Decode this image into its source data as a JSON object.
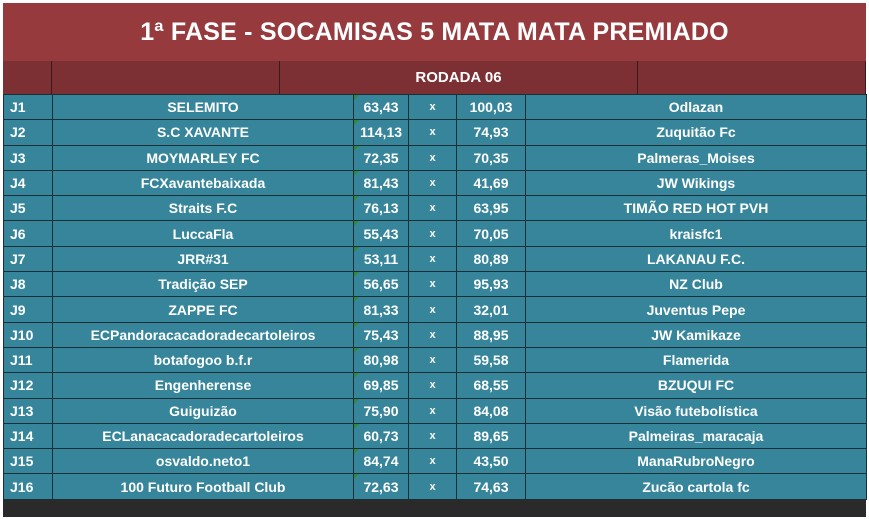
{
  "title": "1ª FASE - SOCAMISAS 5 MATA MATA PREMIADO",
  "round": "RODADA 06",
  "vs_symbol": "x",
  "colors": {
    "title_bg": "#963a3d",
    "round_bg": "#7c3034",
    "row_bg": "#36859b",
    "text": "#ffffff",
    "score_marker": "#2e8b3a"
  },
  "matches": [
    {
      "id": "J1",
      "home": "SELEMITO",
      "home_score": "63,43",
      "away_score": "100,03",
      "away": "Odlazan"
    },
    {
      "id": "J2",
      "home": "S.C XAVANTE",
      "home_score": "114,13",
      "away_score": "74,93",
      "away": "Zuquitão Fc"
    },
    {
      "id": "J3",
      "home": "MOYMARLEY FC",
      "home_score": "72,35",
      "away_score": "70,35",
      "away": "Palmeras_Moises"
    },
    {
      "id": "J4",
      "home": "FCXavantebaixada",
      "home_score": "81,43",
      "away_score": "41,69",
      "away": "JW Wikings"
    },
    {
      "id": "J5",
      "home": "Straits F.C",
      "home_score": "76,13",
      "away_score": "63,95",
      "away": "TIMÃO RED HOT PVH"
    },
    {
      "id": "J6",
      "home": "LuccaFla",
      "home_score": "55,43",
      "away_score": "70,05",
      "away": "kraisfc1"
    },
    {
      "id": "J7",
      "home": "JRR#31",
      "home_score": "53,11",
      "away_score": "80,89",
      "away": "LAKANAU F.C."
    },
    {
      "id": "J8",
      "home": "Tradição SEP",
      "home_score": "56,65",
      "away_score": "95,93",
      "away": "NZ Club"
    },
    {
      "id": "J9",
      "home": "ZAPPE FC",
      "home_score": "81,33",
      "away_score": "32,01",
      "away": "Juventus Pepe"
    },
    {
      "id": "J10",
      "home": "ECPandoracacadoradecartoleiros",
      "home_score": "75,43",
      "away_score": "88,95",
      "away": "JW Kamikaze"
    },
    {
      "id": "J11",
      "home": "botafogoo b.f.r",
      "home_score": "80,98",
      "away_score": "59,58",
      "away": "Flamerida"
    },
    {
      "id": "J12",
      "home": "Engenherense",
      "home_score": "69,85",
      "away_score": "68,55",
      "away": "BZUQUI FC"
    },
    {
      "id": "J13",
      "home": "Guiguizão",
      "home_score": "75,90",
      "away_score": "84,08",
      "away": "Visão futebolística"
    },
    {
      "id": "J14",
      "home": "ECLanacacadoradecartoleiros",
      "home_score": "60,73",
      "away_score": "89,65",
      "away": "Palmeiras_maracaja"
    },
    {
      "id": "J15",
      "home": "osvaldo.neto1",
      "home_score": "84,74",
      "away_score": "43,50",
      "away": "ManaRubroNegro"
    },
    {
      "id": "J16",
      "home": "100 Futuro Football Club",
      "home_score": "72,63",
      "away_score": "74,63",
      "away": "Zucão cartola fc"
    }
  ]
}
